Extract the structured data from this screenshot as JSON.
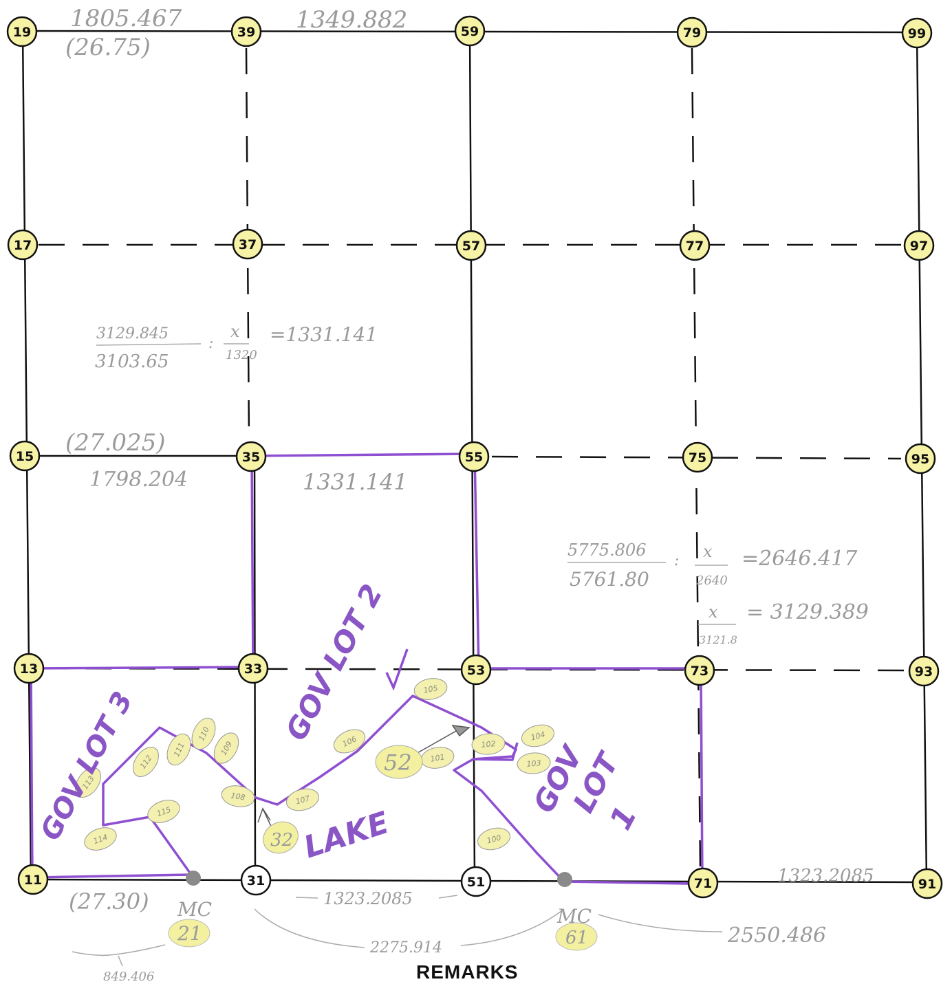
{
  "corners": [
    {
      "id": "19",
      "label": "19"
    },
    {
      "id": "39",
      "label": "39"
    },
    {
      "id": "59",
      "label": "59"
    },
    {
      "id": "79",
      "label": "79"
    },
    {
      "id": "99",
      "label": "99"
    },
    {
      "id": "17",
      "label": "17"
    },
    {
      "id": "37",
      "label": "37"
    },
    {
      "id": "57",
      "label": "57"
    },
    {
      "id": "77",
      "label": "77"
    },
    {
      "id": "97",
      "label": "97"
    },
    {
      "id": "15",
      "label": "15"
    },
    {
      "id": "35",
      "label": "35"
    },
    {
      "id": "55",
      "label": "55"
    },
    {
      "id": "75",
      "label": "75"
    },
    {
      "id": "95",
      "label": "95"
    },
    {
      "id": "13",
      "label": "13"
    },
    {
      "id": "33",
      "label": "33"
    },
    {
      "id": "53",
      "label": "53"
    },
    {
      "id": "73",
      "label": "73"
    },
    {
      "id": "93",
      "label": "93"
    },
    {
      "id": "11",
      "label": "11"
    },
    {
      "id": "31",
      "label": "31"
    },
    {
      "id": "51",
      "label": "51"
    },
    {
      "id": "71",
      "label": "71"
    },
    {
      "id": "91",
      "label": "91"
    }
  ],
  "meander_corners": [
    {
      "id": "21",
      "label": "21",
      "note": "MC"
    },
    {
      "id": "61",
      "label": "61",
      "note": "MC"
    }
  ],
  "lake_points": [
    "32",
    "52"
  ],
  "meander_stations": [
    "101",
    "102",
    "103",
    "104",
    "105",
    "106",
    "107",
    "108",
    "109",
    "110",
    "111",
    "112",
    "113",
    "114",
    "115",
    "100"
  ],
  "lots": {
    "lot1_a": "GOV",
    "lot1_b": "LOT",
    "lot1_c": "1",
    "lot2": "GOV LOT 2",
    "lot3": "GOV LOT 3",
    "lake": "LAKE"
  },
  "pencil_notes": {
    "top_left_dist": "1805.467",
    "top_left_chains": "(26.75)",
    "top_mid_dist": "1349.882",
    "ratio_left_num": "3129.845",
    "ratio_left_den": "3103.65",
    "ratio_left_x": "x",
    "ratio_left_1320": "1320",
    "ratio_left_result": "=1331.141",
    "mid_left_chains": "(27.025)",
    "mid_left_dist": "1798.204",
    "mid_center_dist": "1331.141",
    "ratio_right_num": "5775.806",
    "ratio_right_den": "5761.80",
    "ratio_right_x": "x",
    "ratio_right_2640": "2640",
    "ratio_right_result": "=2646.417",
    "ratio_right2_x": "x",
    "ratio_right2_den": "3121.8",
    "ratio_right2_result": "= 3129.389",
    "bottom_left_chains": "(27.30)",
    "bottom_center_dist": "1323.2085",
    "bottom_right_dist": "1323.2085",
    "bottom_span": "2275.914",
    "bottom_right_span": "2550.486",
    "bottom_far_left": "849.406"
  },
  "remarks": "REMARKS",
  "colors": {
    "corner_fill": "#f6f2a6",
    "purple": "#8e4fd0",
    "pencil": "#9a9a9a",
    "line": "#111111"
  }
}
